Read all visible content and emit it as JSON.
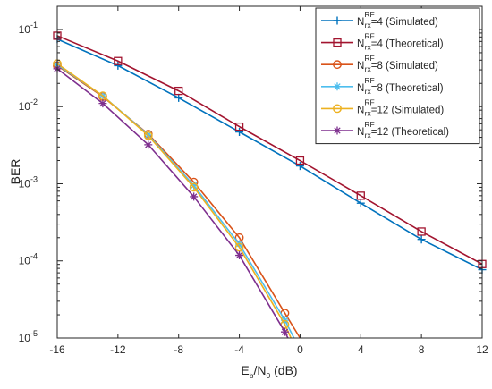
{
  "chart_data": {
    "type": "line",
    "title": "",
    "xlabel_parts": {
      "base_main": "E",
      "base_sub": "b",
      "slash": "/N",
      "den_sub": "0",
      "unit": " (dB)"
    },
    "ylabel": "BER",
    "xlim": [
      -16,
      12
    ],
    "ylim": [
      1e-05,
      0.2
    ],
    "yscale": "log",
    "grid": false,
    "legend_position": "top-right",
    "x_ticks": [
      -16,
      -12,
      -8,
      -4,
      0,
      4,
      8,
      12
    ],
    "x_tick_labels": [
      "-16",
      "-12",
      "-8",
      "-4",
      "0",
      "4",
      "8",
      "12"
    ],
    "y_ticks": [
      1e-05,
      0.0001,
      0.001,
      0.01,
      0.1
    ],
    "y_tick_labels": [
      {
        "base": "10",
        "exp": "-5"
      },
      {
        "base": "10",
        "exp": "-4"
      },
      {
        "base": "10",
        "exp": "-3"
      },
      {
        "base": "10",
        "exp": "-2"
      },
      {
        "base": "10",
        "exp": "-1"
      }
    ],
    "series": [
      {
        "legend": {
          "N": "N",
          "sup": "RF",
          "sub": "rx",
          "rest": "=4 (Simulated)"
        },
        "color": "#0072BD",
        "marker": "plus",
        "x": [
          -16,
          -12,
          -8,
          -4,
          0,
          4,
          8,
          12
        ],
        "y": [
          0.075,
          0.034,
          0.013,
          0.0047,
          0.0017,
          0.00056,
          0.00019,
          7.7e-05
        ]
      },
      {
        "legend": {
          "N": "N",
          "sup": "RF",
          "sub": "rx",
          "rest": "=4 (Theoretical)"
        },
        "color": "#A2142F",
        "marker": "square",
        "x": [
          -16,
          -12,
          -8,
          -4,
          0,
          4,
          8,
          12
        ],
        "y": [
          0.083,
          0.039,
          0.016,
          0.0055,
          0.002,
          0.0007,
          0.00024,
          9.1e-05
        ]
      },
      {
        "legend": {
          "N": "N",
          "sup": "RF",
          "sub": "rx",
          "rest": "=8 (Simulated)"
        },
        "color": "#D95319",
        "marker": "circle",
        "x": [
          -16,
          -13,
          -10,
          -7,
          -4,
          -1,
          0
        ],
        "y": [
          0.034,
          0.0135,
          0.0044,
          0.00105,
          0.0002,
          2.1e-05,
          1e-05
        ]
      },
      {
        "legend": {
          "N": "N",
          "sup": "RF",
          "sub": "rx",
          "rest": "=8 (Theoretical)"
        },
        "color": "#4DBEEE",
        "marker": "asterisk",
        "x": [
          -16,
          -13,
          -10,
          -7,
          -4,
          -1,
          -0.4
        ],
        "y": [
          0.035,
          0.0138,
          0.0043,
          0.00095,
          0.000165,
          1.7e-05,
          1e-05
        ]
      },
      {
        "legend": {
          "N": "N",
          "sup": "RF",
          "sub": "rx",
          "rest": "=12   (Simulated)"
        },
        "color": "#EDB120",
        "marker": "circle",
        "x": [
          -16,
          -13,
          -10,
          -7,
          -4,
          -1,
          -0.6
        ],
        "y": [
          0.036,
          0.0138,
          0.0042,
          0.0009,
          0.00015,
          1.5e-05,
          1e-05
        ]
      },
      {
        "legend": {
          "N": "N",
          "sup": "RF",
          "sub": "rx",
          "rest": "=12 (Theoretical)"
        },
        "color": "#7E2F8E",
        "marker": "asterisk",
        "x": [
          -16,
          -13,
          -10,
          -7,
          -4,
          -1,
          -0.8
        ],
        "y": [
          0.031,
          0.011,
          0.0032,
          0.00068,
          0.000118,
          1.2e-05,
          1e-05
        ]
      }
    ]
  }
}
